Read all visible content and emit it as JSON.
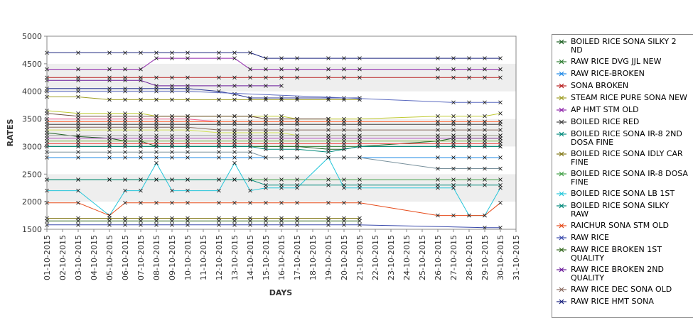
{
  "chart_data": {
    "type": "line",
    "title": "",
    "xlabel": "DAYS",
    "ylabel": "RATES",
    "ylim": [
      1500,
      5000
    ],
    "yticks": [
      1500,
      2000,
      2500,
      3000,
      3500,
      4000,
      4500,
      5000
    ],
    "x": [
      "01-10-2015",
      "02-10-2015",
      "03-10-2015",
      "04-10-2015",
      "05-10-2015",
      "06-10-2015",
      "07-10-2015",
      "08-10-2015",
      "09-10-2015",
      "10-10-2015",
      "11-10-2015",
      "12-10-2015",
      "13-10-2015",
      "14-10-2015",
      "15-10-2015",
      "16-10-2015",
      "17-10-2015",
      "18-10-2015",
      "19-10-2015",
      "20-10-2015",
      "21-10-2015",
      "22-10-2015",
      "23-10-2015",
      "24-10-2015",
      "25-10-2015",
      "26-10-2015",
      "27-10-2015",
      "28-10-2015",
      "29-10-2015",
      "30-10-2015",
      "31-10-2015"
    ],
    "grid": "alternating horizontal bands",
    "legend_position": "right",
    "series": [
      {
        "name": "BOILED RICE SONA SILKY 2 ND",
        "color": "#1b5e20",
        "values": [
          3250,
          null,
          3180,
          null,
          3150,
          3100,
          3100,
          3000,
          3000,
          3000,
          null,
          3000,
          3000,
          3000,
          3000,
          3000,
          3000,
          null,
          2950,
          2950,
          3000,
          null,
          null,
          null,
          null,
          3100,
          3150,
          3150,
          3150,
          3150,
          null
        ]
      },
      {
        "name": "RAW RICE DVG JJL NEW",
        "color": "#2e7d32",
        "values": [
          3000,
          null,
          3000,
          null,
          3000,
          3000,
          3000,
          3000,
          3000,
          3000,
          null,
          3000,
          3000,
          3000,
          3000,
          3000,
          3000,
          null,
          3000,
          3000,
          3000,
          null,
          null,
          null,
          null,
          3000,
          3000,
          3000,
          3000,
          3000,
          null
        ]
      },
      {
        "name": "RAW RICE-BROKEN",
        "color": "#1e88e5",
        "values": [
          2800,
          null,
          2800,
          null,
          2800,
          2800,
          2800,
          2800,
          2800,
          2800,
          null,
          2800,
          2800,
          2800,
          2800,
          2800,
          2800,
          null,
          2800,
          2800,
          2800,
          null,
          null,
          null,
          null,
          2800,
          2800,
          2800,
          2800,
          2800,
          null
        ]
      },
      {
        "name": "SONA BROKEN",
        "color": "#b71c1c",
        "values": [
          4250,
          null,
          4250,
          null,
          4250,
          4250,
          4250,
          4250,
          4250,
          4250,
          null,
          4250,
          4250,
          4250,
          4250,
          4250,
          4250,
          null,
          4250,
          4250,
          4250,
          null,
          null,
          null,
          null,
          4250,
          4250,
          4250,
          4250,
          4250,
          null
        ]
      },
      {
        "name": "STEAM RICE PURE SONA NEW",
        "color": "#9e9d24",
        "values": [
          3900,
          null,
          3900,
          null,
          3850,
          3850,
          3850,
          3850,
          3850,
          3850,
          null,
          3850,
          3850,
          3850,
          3850,
          3850,
          3850,
          null,
          3850,
          3850,
          3850,
          null,
          null,
          null,
          null,
          null,
          null,
          null,
          null,
          null,
          null
        ]
      },
      {
        "name": "AP HMT STM OLD",
        "color": "#8e24aa",
        "values": [
          4400,
          null,
          4400,
          null,
          4400,
          4400,
          4400,
          4600,
          4600,
          4600,
          null,
          4600,
          4600,
          4400,
          4400,
          4400,
          4400,
          null,
          4400,
          4400,
          4400,
          null,
          null,
          null,
          null,
          4400,
          4400,
          4400,
          4400,
          4400,
          null
        ]
      },
      {
        "name": "BOILED RICE RED",
        "color": "#424242",
        "values": [
          3400,
          null,
          3400,
          null,
          3400,
          3400,
          3400,
          3400,
          3400,
          3400,
          null,
          3400,
          3400,
          3400,
          3400,
          3400,
          3400,
          null,
          3400,
          3400,
          3400,
          null,
          null,
          null,
          null,
          3400,
          3400,
          3400,
          3400,
          3400,
          null
        ]
      },
      {
        "name": "BOILED RICE SONA IR-8 2ND DOSA FINE",
        "color": "#00897b",
        "values": [
          3000,
          null,
          3000,
          null,
          3000,
          3000,
          3000,
          3000,
          3000,
          3000,
          null,
          3000,
          3000,
          3000,
          2950,
          2950,
          2950,
          null,
          2900,
          2950,
          3000,
          null,
          null,
          null,
          null,
          3000,
          3000,
          3000,
          3000,
          3000,
          null
        ]
      },
      {
        "name": "BOILED RICE SONA IDLY CAR FINE",
        "color": "#827717",
        "values": [
          1700,
          null,
          1700,
          null,
          1700,
          1700,
          1700,
          1700,
          1700,
          1700,
          null,
          1700,
          1700,
          1700,
          1700,
          1700,
          1700,
          null,
          1700,
          1700,
          1700,
          null,
          null,
          null,
          null,
          null,
          null,
          null,
          null,
          null,
          null
        ]
      },
      {
        "name": "BOILED RICE SONA IR-8 DOSA FINE",
        "color": "#43a047",
        "values": [
          2400,
          null,
          2400,
          null,
          2400,
          2400,
          2400,
          2400,
          2400,
          2400,
          null,
          2400,
          2400,
          2400,
          2400,
          2400,
          2400,
          null,
          2400,
          2400,
          2400,
          null,
          null,
          null,
          null,
          2400,
          2400,
          2400,
          2400,
          2400,
          null
        ]
      },
      {
        "name": "BOILED RICE SONA LB 1ST",
        "color": "#26c6da",
        "values": [
          2200,
          null,
          2200,
          null,
          1750,
          2200,
          2200,
          2700,
          2200,
          2200,
          null,
          2200,
          2700,
          2200,
          2250,
          2250,
          2250,
          null,
          2800,
          2250,
          2250,
          null,
          null,
          null,
          null,
          2250,
          2250,
          1750,
          1750,
          2250,
          null
        ]
      },
      {
        "name": "BOILED RICE SONA SILKY RAW",
        "color": "#00897b",
        "values": [
          2400,
          null,
          2400,
          null,
          2400,
          2400,
          2400,
          2400,
          2400,
          2400,
          null,
          2400,
          2400,
          2400,
          2300,
          2300,
          2300,
          null,
          2300,
          2300,
          2300,
          null,
          null,
          null,
          null,
          2300,
          2300,
          2300,
          2300,
          2300,
          null
        ]
      },
      {
        "name": "RAICHUR SONA STM OLD",
        "color": "#e64a19",
        "values": [
          1980,
          null,
          1980,
          null,
          1750,
          1980,
          1980,
          1980,
          1980,
          1980,
          null,
          1980,
          1980,
          1980,
          1980,
          1980,
          1980,
          null,
          1980,
          1980,
          1980,
          null,
          null,
          null,
          null,
          1750,
          1750,
          1750,
          1750,
          1980,
          null
        ]
      },
      {
        "name": "RAW RICE",
        "color": "#3949ab",
        "values": [
          1580,
          null,
          1580,
          null,
          1580,
          1580,
          1580,
          1580,
          1580,
          1580,
          null,
          1580,
          1580,
          1580,
          1580,
          1580,
          1580,
          null,
          1580,
          1580,
          1580,
          null,
          null,
          null,
          null,
          null,
          null,
          null,
          1530,
          1530,
          null
        ]
      },
      {
        "name": "RAW RICE BROKEN 1ST QUALITY",
        "color": "#33691e",
        "values": [
          1650,
          null,
          1650,
          null,
          1650,
          1650,
          1650,
          1650,
          1650,
          1650,
          null,
          1650,
          1650,
          1650,
          1650,
          1650,
          1650,
          null,
          1650,
          1650,
          1650,
          null,
          null,
          null,
          null,
          null,
          null,
          null,
          null,
          null,
          null
        ]
      },
      {
        "name": "RAW RICE BROKEN 2ND QUALITY",
        "color": "#6a1b9a",
        "values": [
          4200,
          null,
          4200,
          null,
          4200,
          4200,
          4200,
          4100,
          4100,
          4100,
          null,
          4100,
          4100,
          4100,
          4100,
          4100,
          null,
          null,
          null,
          null,
          null,
          null,
          null,
          null,
          null,
          null,
          null,
          null,
          null,
          null,
          null
        ]
      },
      {
        "name": "RAW RICE DEC SONA OLD",
        "color": "#8d6e63",
        "values": [
          3350,
          null,
          3350,
          null,
          3350,
          3350,
          3350,
          3350,
          3350,
          3350,
          null,
          3300,
          3300,
          3300,
          3300,
          3300,
          3300,
          null,
          3300,
          3300,
          3300,
          null,
          null,
          null,
          null,
          3300,
          3300,
          3300,
          3300,
          3300,
          null
        ]
      },
      {
        "name": "RAW RICE HMT SONA",
        "color": "#1a237e",
        "values": [
          4700,
          null,
          4700,
          null,
          4700,
          4700,
          4700,
          4700,
          4700,
          4700,
          null,
          4700,
          4700,
          4700,
          4600,
          4600,
          4600,
          null,
          4600,
          4600,
          4600,
          null,
          null,
          null,
          null,
          4600,
          4600,
          4600,
          4600,
          4600,
          null
        ]
      },
      {
        "name": "",
        "color": "#283593",
        "values": [
          4050,
          null,
          4050,
          null,
          4050,
          4050,
          4050,
          4050,
          4050,
          4050,
          null,
          4000,
          3950,
          3880,
          3880,
          3880,
          3880,
          null,
          3880,
          3880,
          3880,
          null,
          null,
          null,
          null,
          null,
          null,
          null,
          null,
          null,
          null
        ]
      },
      {
        "name": "",
        "color": "#5c6bc0",
        "values": [
          4000,
          null,
          4000,
          null,
          4000,
          4000,
          4000,
          4000,
          4000,
          4000,
          null,
          null,
          null,
          null,
          null,
          null,
          null,
          null,
          null,
          null,
          null,
          null,
          null,
          null,
          null,
          null,
          3800,
          3800,
          3800,
          3800,
          null
        ]
      },
      {
        "name": "",
        "color": "#c0ca33",
        "values": [
          3650,
          null,
          3600,
          null,
          3600,
          3600,
          3600,
          3550,
          3550,
          3550,
          null,
          3550,
          3550,
          3550,
          3550,
          3550,
          3500,
          null,
          3500,
          3500,
          3500,
          null,
          null,
          null,
          null,
          3550,
          3550,
          3550,
          3550,
          3600,
          null
        ]
      },
      {
        "name": "",
        "color": "#f06292",
        "values": [
          3500,
          null,
          3500,
          null,
          3500,
          3500,
          3500,
          3500,
          3500,
          3500,
          null,
          3450,
          3450,
          3450,
          3450,
          3450,
          3450,
          null,
          3450,
          3450,
          3450,
          null,
          null,
          null,
          null,
          3450,
          3450,
          3450,
          3450,
          3450,
          null
        ]
      },
      {
        "name": "",
        "color": "#ff7043",
        "values": [
          3450,
          null,
          3450,
          null,
          3450,
          3450,
          3450,
          3450,
          3450,
          3450,
          null,
          3450,
          3450,
          3450,
          3450,
          3450,
          3450,
          null,
          3450,
          3450,
          3450,
          null,
          null,
          null,
          null,
          3450,
          3450,
          3450,
          3450,
          3450,
          null
        ]
      },
      {
        "name": "",
        "color": "#ab47bc",
        "values": [
          3150,
          null,
          3150,
          null,
          3150,
          3150,
          3150,
          3150,
          3150,
          3150,
          null,
          3150,
          3150,
          3150,
          3150,
          3150,
          3150,
          null,
          3150,
          3150,
          3150,
          null,
          null,
          null,
          null,
          3150,
          3150,
          3150,
          3150,
          3150,
          null
        ]
      },
      {
        "name": "",
        "color": "#7cb342",
        "values": [
          3100,
          null,
          3100,
          null,
          3100,
          3100,
          3100,
          3100,
          3100,
          3100,
          null,
          3100,
          3100,
          3100,
          3100,
          3100,
          3100,
          null,
          3100,
          3100,
          3100,
          null,
          null,
          null,
          null,
          3100,
          3100,
          3100,
          3100,
          3100,
          null
        ]
      },
      {
        "name": "",
        "color": "#78909c",
        "values": [
          2900,
          null,
          2900,
          null,
          2900,
          2900,
          2900,
          2900,
          2900,
          2900,
          null,
          2900,
          2900,
          2900,
          2800,
          2800,
          2800,
          null,
          2800,
          2800,
          2800,
          null,
          null,
          null,
          null,
          2600,
          2600,
          2600,
          2600,
          2600,
          null
        ]
      },
      {
        "name": "",
        "color": "#6d4c41",
        "values": [
          3600,
          null,
          3550,
          null,
          3550,
          3550,
          3550,
          3550,
          3550,
          3550,
          null,
          3550,
          3550,
          3550,
          3500,
          3500,
          3500,
          null,
          3500,
          null,
          null,
          null,
          null,
          null,
          null,
          null,
          null,
          null,
          null,
          null,
          null
        ]
      },
      {
        "name": "",
        "color": "#d4e157",
        "values": [
          3300,
          null,
          3300,
          null,
          3300,
          3300,
          3300,
          3300,
          3300,
          3300,
          null,
          3250,
          3250,
          3250,
          3250,
          3250,
          3200,
          null,
          3200,
          3200,
          3200,
          null,
          null,
          null,
          null,
          3200,
          3200,
          3200,
          3200,
          3200,
          null
        ]
      },
      {
        "name": "",
        "color": "#9e9e9e",
        "values": [
          3200,
          null,
          3200,
          null,
          3200,
          3200,
          3200,
          3200,
          3200,
          3200,
          null,
          3200,
          3200,
          3200,
          3200,
          3200,
          3200,
          null,
          3200,
          3200,
          3200,
          null,
          null,
          null,
          null,
          3200,
          3200,
          3200,
          3200,
          3200,
          null
        ]
      },
      {
        "name": "",
        "color": "#ef5350",
        "values": [
          3050,
          null,
          3050,
          null,
          3050,
          3050,
          3050,
          3050,
          3050,
          3050,
          null,
          3050,
          3050,
          3050,
          3050,
          3050,
          3050,
          null,
          3050,
          3050,
          3050,
          null,
          null,
          null,
          null,
          3050,
          3050,
          3050,
          3050,
          3050,
          null
        ]
      }
    ]
  }
}
